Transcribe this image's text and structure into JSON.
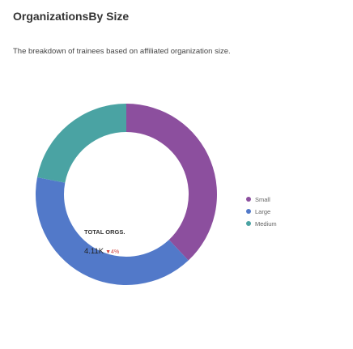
{
  "card": {
    "title": "OrganizationsBy Size",
    "subtitle": "The breakdown of trainees based on affiliated organization size."
  },
  "chart_data": {
    "type": "pie",
    "donut": true,
    "center": {
      "label": "TOTAL ORGS.",
      "value": "4.11K",
      "change": "▼4%"
    },
    "legend_position": "right",
    "series": [
      {
        "name": "Small",
        "value": 38,
        "color": "#8c4f9e"
      },
      {
        "name": "Large",
        "value": 40,
        "color": "#5279c9"
      },
      {
        "name": "Medium",
        "value": 22,
        "color": "#4aa3a3"
      }
    ]
  }
}
